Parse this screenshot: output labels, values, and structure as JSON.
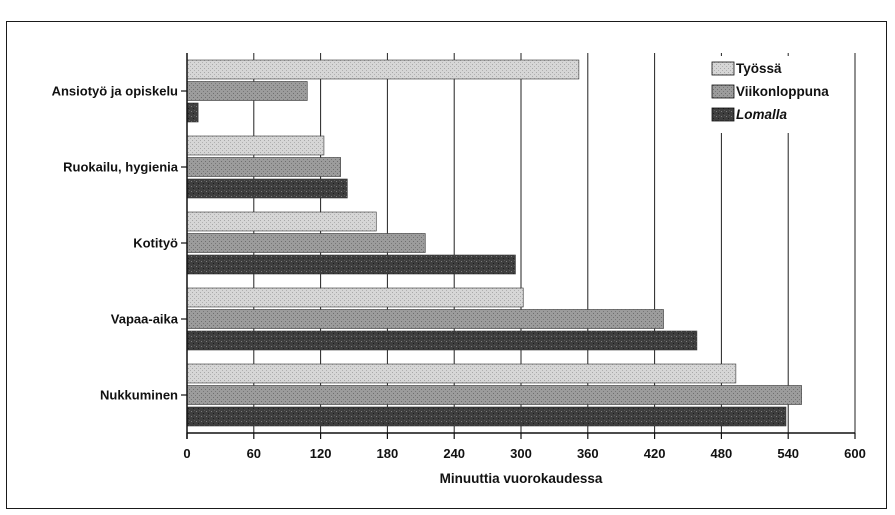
{
  "chart_data": {
    "type": "bar",
    "orientation": "horizontal",
    "categories": [
      "Ansiotyö ja opiskelu",
      "Ruokailu, hygienia",
      "Kotityö",
      "Vapaa-aika",
      "Nukkuminen"
    ],
    "series": [
      {
        "name": "Työssä",
        "values": [
          352,
          123,
          170,
          302,
          493
        ],
        "color": "#d4d4d4"
      },
      {
        "name": "Viikonloppuna",
        "values": [
          108,
          138,
          214,
          428,
          552
        ],
        "color": "#9a9a9a"
      },
      {
        "name": "Lomalla",
        "values": [
          10,
          144,
          295,
          458,
          538
        ],
        "color": "#3a3a3a"
      }
    ],
    "xlabel": "Minuuttia vuorokaudessa",
    "xlim": [
      0,
      600
    ],
    "xticks": [
      0,
      60,
      120,
      180,
      240,
      300,
      360,
      420,
      480,
      540,
      600
    ],
    "grid": "vertical",
    "legend": "top-right"
  }
}
